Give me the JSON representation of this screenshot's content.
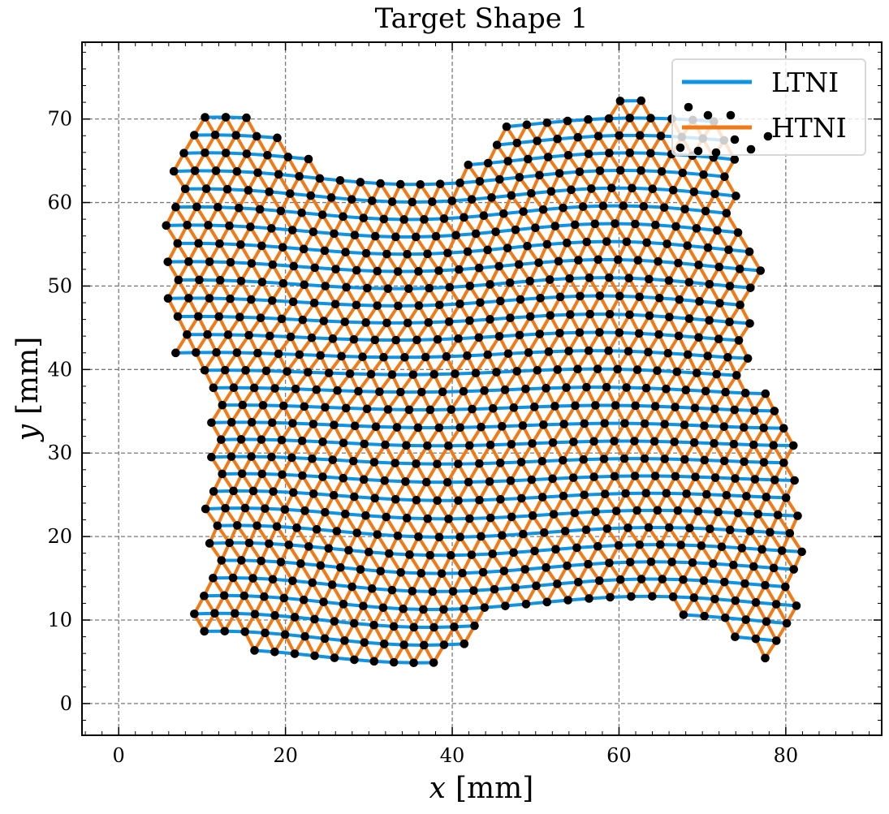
{
  "chart_data": {
    "type": "scatter",
    "title": "Target Shape 1",
    "xlabel_var": "x",
    "xlabel_unit": "[mm]",
    "ylabel_var": "y",
    "ylabel_unit": "[mm]",
    "xlim": [
      -4.4,
      91.5
    ],
    "ylim": [
      -3.8,
      79.2
    ],
    "xticks": [
      0,
      20,
      40,
      60,
      80
    ],
    "yticks": [
      0,
      10,
      20,
      30,
      40,
      50,
      60,
      70
    ],
    "grid": true,
    "legend_position": "top-right",
    "series": [
      {
        "name": "LTNI",
        "kind": "line",
        "color": "#1093e0"
      },
      {
        "name": "HTNI",
        "kind": "line",
        "color": "#f07a15"
      },
      {
        "name": "nodes",
        "kind": "marker",
        "color": "#000000"
      }
    ],
    "lattice": {
      "description": "triangular mesh filling the target outline, nodes ~2.5 mm apart",
      "spacing_mm": 2.45,
      "outline": [
        [
          10.8,
          71.0
        ],
        [
          13,
          70.6
        ],
        [
          15.5,
          70.2
        ],
        [
          18,
          68.5
        ],
        [
          20.5,
          66.8
        ],
        [
          23,
          65.5
        ],
        [
          26,
          64.8
        ],
        [
          29,
          64.2
        ],
        [
          32,
          63.8
        ],
        [
          35,
          64.1
        ],
        [
          38,
          64.2
        ],
        [
          41,
          65.2
        ],
        [
          44,
          66.8
        ],
        [
          46,
          68.6
        ],
        [
          48,
          69.8
        ],
        [
          52,
          70.5
        ],
        [
          56,
          70.9
        ],
        [
          60,
          71.5
        ],
        [
          63,
          71.8
        ],
        [
          66,
          71.2
        ],
        [
          70,
          70.5
        ],
        [
          74,
          70.0
        ],
        [
          75.5,
          66.5
        ],
        [
          75.5,
          63.5
        ],
        [
          75.3,
          60.5
        ],
        [
          75.8,
          56.8
        ],
        [
          77,
          52.2
        ],
        [
          76,
          48.3
        ],
        [
          75.8,
          44.5
        ],
        [
          76.8,
          40.5
        ],
        [
          76.5,
          38.3
        ],
        [
          79,
          37.2
        ],
        [
          80.8,
          36.3
        ],
        [
          81.8,
          34.0
        ],
        [
          81.8,
          31.9
        ],
        [
          82.8,
          29.2
        ],
        [
          82.6,
          26.5
        ],
        [
          82.9,
          24.5
        ],
        [
          82.8,
          22.2
        ],
        [
          82.4,
          19.8
        ],
        [
          83.0,
          17.4
        ],
        [
          81.4,
          14.8
        ],
        [
          80.8,
          12.9
        ],
        [
          80.3,
          10.5
        ],
        [
          79.5,
          8.6
        ],
        [
          77.2,
          5.5
        ],
        [
          75.5,
          6.0
        ],
        [
          73.2,
          6.0
        ],
        [
          71.0,
          7.6
        ],
        [
          69.0,
          9.2
        ],
        [
          66.0,
          9.8
        ],
        [
          62.0,
          10.3
        ],
        [
          58.0,
          10.8
        ],
        [
          54.0,
          11.0
        ],
        [
          49.0,
          11.0
        ],
        [
          46.0,
          10.9
        ],
        [
          44.0,
          10.2
        ],
        [
          42.5,
          8.6
        ],
        [
          41.2,
          6.7
        ],
        [
          38.0,
          5.8
        ],
        [
          35.0,
          5.0
        ],
        [
          31.5,
          4.0
        ],
        [
          29.0,
          4.1
        ],
        [
          26.5,
          3.8
        ],
        [
          24.0,
          4.2
        ],
        [
          21.0,
          4.2
        ],
        [
          18.5,
          4.5
        ],
        [
          16.0,
          4.8
        ],
        [
          13.0,
          6.0
        ],
        [
          10.0,
          7.3
        ],
        [
          6.8,
          8.2
        ],
        [
          8.5,
          12.0
        ],
        [
          9.5,
          16.0
        ],
        [
          10.2,
          20.5
        ],
        [
          9.8,
          24.0
        ],
        [
          11.0,
          28.0
        ],
        [
          11.5,
          33.0
        ],
        [
          10.5,
          37.0
        ],
        [
          9.3,
          40.5
        ],
        [
          7.5,
          40.2
        ],
        [
          6.0,
          44.5
        ],
        [
          5.2,
          49.5
        ],
        [
          5.0,
          54.2
        ],
        [
          5.5,
          59.0
        ],
        [
          6.5,
          63.5
        ],
        [
          7.8,
          67.4
        ],
        [
          10.8,
          71.0
        ]
      ]
    }
  }
}
